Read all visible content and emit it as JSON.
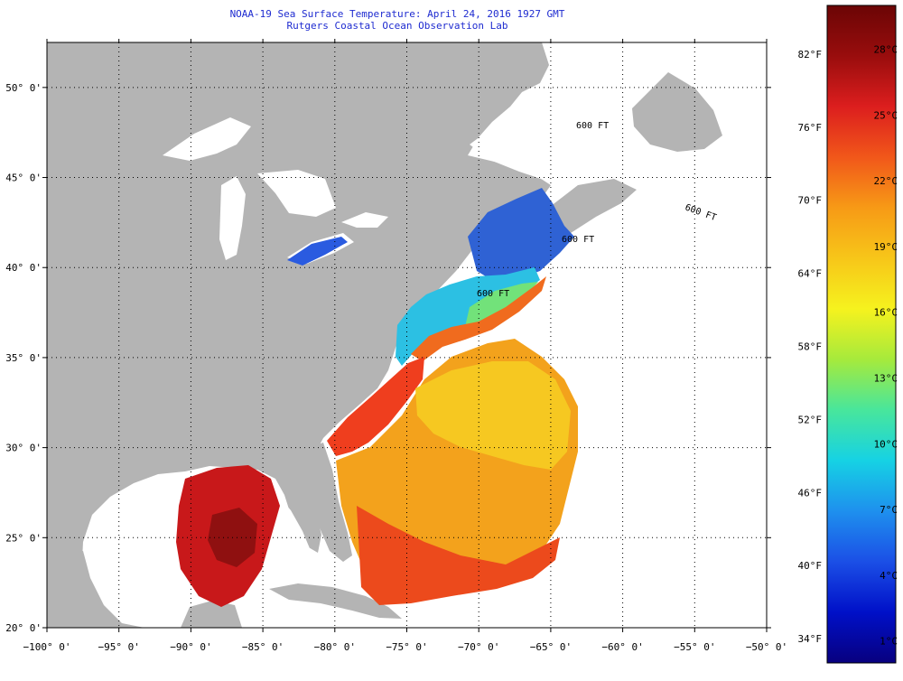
{
  "title": "NOAA-19 Sea Surface Temperature:  April 24, 2016 1927 GMT",
  "subtitle": "Rutgers Coastal Ocean Observation Lab",
  "map": {
    "lon_range": [
      -100,
      -50
    ],
    "lat_range": [
      20,
      52.5
    ],
    "lon_ticks": [
      {
        "value": -100,
        "label": "−100° 0'"
      },
      {
        "value": -95,
        "label": "−95° 0'"
      },
      {
        "value": -90,
        "label": "−90° 0'"
      },
      {
        "value": -85,
        "label": "−85° 0'"
      },
      {
        "value": -80,
        "label": "−80° 0'"
      },
      {
        "value": -75,
        "label": "−75° 0'"
      },
      {
        "value": -70,
        "label": "−70° 0'"
      },
      {
        "value": -65,
        "label": "−65° 0'"
      },
      {
        "value": -60,
        "label": "−60° 0'"
      },
      {
        "value": -55,
        "label": "−55° 0'"
      },
      {
        "value": -50,
        "label": "−50° 0'"
      }
    ],
    "lat_ticks": [
      {
        "value": 20,
        "label": "20° 0'"
      },
      {
        "value": 25,
        "label": "25° 0'"
      },
      {
        "value": 30,
        "label": "30° 0'"
      },
      {
        "value": 35,
        "label": "35° 0'"
      },
      {
        "value": 40,
        "label": "40° 0'"
      },
      {
        "value": 45,
        "label": "45° 0'"
      },
      {
        "value": 50,
        "label": "50° 0'"
      }
    ],
    "contour_labels": [
      "600 FT",
      "600 FT",
      "600 FT",
      "600 FT"
    ],
    "colors": {
      "land": "#b4b4b4",
      "no_data": "#ffffff",
      "grid": "#000000"
    }
  },
  "colorbar": {
    "fahrenheit_ticks": [
      {
        "value": 34,
        "label": "34°F"
      },
      {
        "value": 40,
        "label": "40°F"
      },
      {
        "value": 46,
        "label": "46°F"
      },
      {
        "value": 52,
        "label": "52°F"
      },
      {
        "value": 58,
        "label": "58°F"
      },
      {
        "value": 64,
        "label": "64°F"
      },
      {
        "value": 70,
        "label": "70°F"
      },
      {
        "value": 76,
        "label": "76°F"
      },
      {
        "value": 82,
        "label": "82°F"
      }
    ],
    "celsius_ticks": [
      {
        "value": 1,
        "label": "1°C"
      },
      {
        "value": 4,
        "label": "4°C"
      },
      {
        "value": 7,
        "label": "7°C"
      },
      {
        "value": 10,
        "label": "10°C"
      },
      {
        "value": 13,
        "label": "13°C"
      },
      {
        "value": 16,
        "label": "16°C"
      },
      {
        "value": 19,
        "label": "19°C"
      },
      {
        "value": 22,
        "label": "22°C"
      },
      {
        "value": 25,
        "label": "25°C"
      },
      {
        "value": 28,
        "label": "28°C"
      }
    ],
    "colors": [
      "#08007f",
      "#0010c8",
      "#1b4fe6",
      "#1e90ee",
      "#16d2e4",
      "#48e69c",
      "#a6ea3c",
      "#f6f21e",
      "#f7c619",
      "#f79a16",
      "#f1571a",
      "#dc1e1e",
      "#990d0d",
      "#6b0505"
    ]
  }
}
